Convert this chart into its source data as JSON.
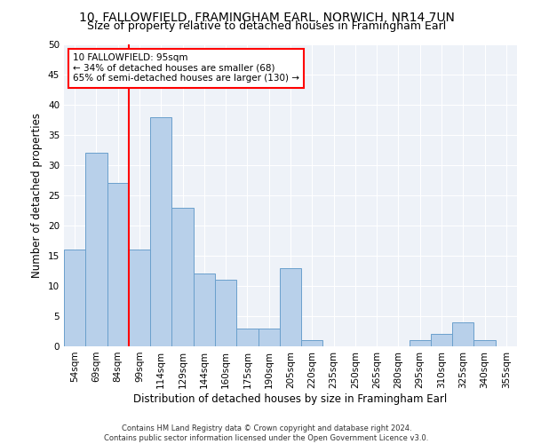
{
  "title": "10, FALLOWFIELD, FRAMINGHAM EARL, NORWICH, NR14 7UN",
  "subtitle": "Size of property relative to detached houses in Framingham Earl",
  "xlabel": "Distribution of detached houses by size in Framingham Earl",
  "ylabel": "Number of detached properties",
  "footer_line1": "Contains HM Land Registry data © Crown copyright and database right 2024.",
  "footer_line2": "Contains public sector information licensed under the Open Government Licence v3.0.",
  "categories": [
    "54sqm",
    "69sqm",
    "84sqm",
    "99sqm",
    "114sqm",
    "129sqm",
    "144sqm",
    "160sqm",
    "175sqm",
    "190sqm",
    "205sqm",
    "220sqm",
    "235sqm",
    "250sqm",
    "265sqm",
    "280sqm",
    "295sqm",
    "310sqm",
    "325sqm",
    "340sqm",
    "355sqm"
  ],
  "values": [
    16,
    32,
    27,
    16,
    38,
    23,
    12,
    11,
    3,
    3,
    13,
    1,
    0,
    0,
    0,
    0,
    1,
    2,
    4,
    1,
    0
  ],
  "bar_color": "#b8d0ea",
  "bar_edge_color": "#6aa0cc",
  "vline_pos": 2.5,
  "vline_color": "red",
  "annotation_text": "10 FALLOWFIELD: 95sqm\n← 34% of detached houses are smaller (68)\n65% of semi-detached houses are larger (130) →",
  "annotation_box_color": "white",
  "annotation_box_edge_color": "red",
  "ylim": [
    0,
    50
  ],
  "yticks": [
    0,
    5,
    10,
    15,
    20,
    25,
    30,
    35,
    40,
    45,
    50
  ],
  "bg_color": "#eef2f8",
  "title_fontsize": 10,
  "subtitle_fontsize": 9,
  "axis_label_fontsize": 8.5,
  "tick_fontsize": 7.5,
  "annotation_fontsize": 7.5,
  "footer_fontsize": 6
}
